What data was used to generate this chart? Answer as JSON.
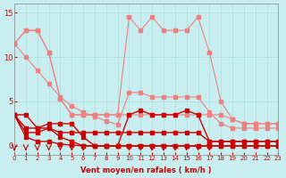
{
  "bg_color": "#c8eef0",
  "grid_color": "#aadddd",
  "line_color_light": "#f08080",
  "line_color_dark": "#cc0000",
  "arrow_color": "#cc0000",
  "xlabel": "Vent moyen/en rafales ( km/h )",
  "xlabel_color": "#cc0000",
  "yticks": [
    0,
    5,
    10,
    15
  ],
  "xticks": [
    0,
    1,
    2,
    3,
    4,
    5,
    6,
    7,
    8,
    9,
    10,
    11,
    12,
    13,
    14,
    15,
    16,
    17,
    18,
    19,
    20,
    21,
    22,
    23
  ],
  "xlim": [
    0,
    23
  ],
  "ylim": [
    -1,
    16
  ],
  "lines_light": [
    [
      11.5,
      13.0,
      13.0,
      10.5,
      5.3,
      3.5,
      3.5,
      3.5,
      3.5,
      3.5,
      14.5,
      13.0,
      14.5,
      13.0,
      13.0,
      13.0,
      14.5,
      10.5,
      5.0,
      3.0,
      2.5,
      2.5,
      2.5,
      2.5
    ],
    [
      11.5,
      13.0,
      13.0,
      10.5,
      5.3,
      3.5,
      3.5,
      3.5,
      3.5,
      3.5,
      3.5,
      3.5,
      3.5,
      3.5,
      3.5,
      3.5,
      3.5,
      3.5,
      3.5,
      3.0,
      2.5,
      2.5,
      2.5,
      2.5
    ],
    [
      11.5,
      10.0,
      8.5,
      7.0,
      5.5,
      4.5,
      3.8,
      3.3,
      2.8,
      2.4,
      6.0,
      6.0,
      5.5,
      5.5,
      5.5,
      5.5,
      5.5,
      3.8,
      2.5,
      2.0,
      2.0,
      2.0,
      2.0,
      2.0
    ]
  ],
  "lines_dark": [
    [
      3.5,
      3.5,
      2.0,
      2.5,
      2.5,
      2.5,
      1.0,
      0.0,
      0.0,
      0.0,
      3.5,
      4.0,
      3.5,
      3.5,
      3.5,
      4.0,
      3.5,
      0.5,
      0.5,
      0.5,
      0.5,
      0.5,
      0.5,
      0.5
    ],
    [
      3.5,
      2.0,
      2.0,
      2.0,
      1.5,
      1.5,
      1.5,
      1.5,
      1.5,
      1.5,
      1.5,
      1.5,
      1.5,
      1.5,
      1.5,
      1.5,
      1.5,
      0.5,
      0.5,
      0.5,
      0.5,
      0.5,
      0.5,
      0.5
    ],
    [
      3.5,
      1.5,
      1.5,
      2.0,
      1.0,
      0.5,
      0.0,
      0.0,
      0.0,
      0.0,
      0.0,
      0.0,
      0.0,
      0.0,
      0.0,
      0.0,
      0.0,
      0.0,
      0.0,
      0.0,
      0.0,
      0.0,
      0.0,
      0.0
    ],
    [
      3.5,
      1.0,
      0.5,
      0.5,
      0.2,
      0.1,
      0.0,
      0.0,
      0.0,
      0.0,
      0.0,
      0.0,
      0.0,
      0.0,
      0.0,
      0.0,
      0.0,
      0.0,
      0.0,
      0.0,
      0.0,
      0.0,
      0.0,
      0.0
    ]
  ],
  "arrows_x": [
    0,
    1,
    2,
    3,
    4,
    5,
    6,
    10,
    11,
    12,
    13,
    14,
    15,
    16,
    17
  ],
  "font_color": "#cc0000",
  "tick_color": "#cc0000"
}
